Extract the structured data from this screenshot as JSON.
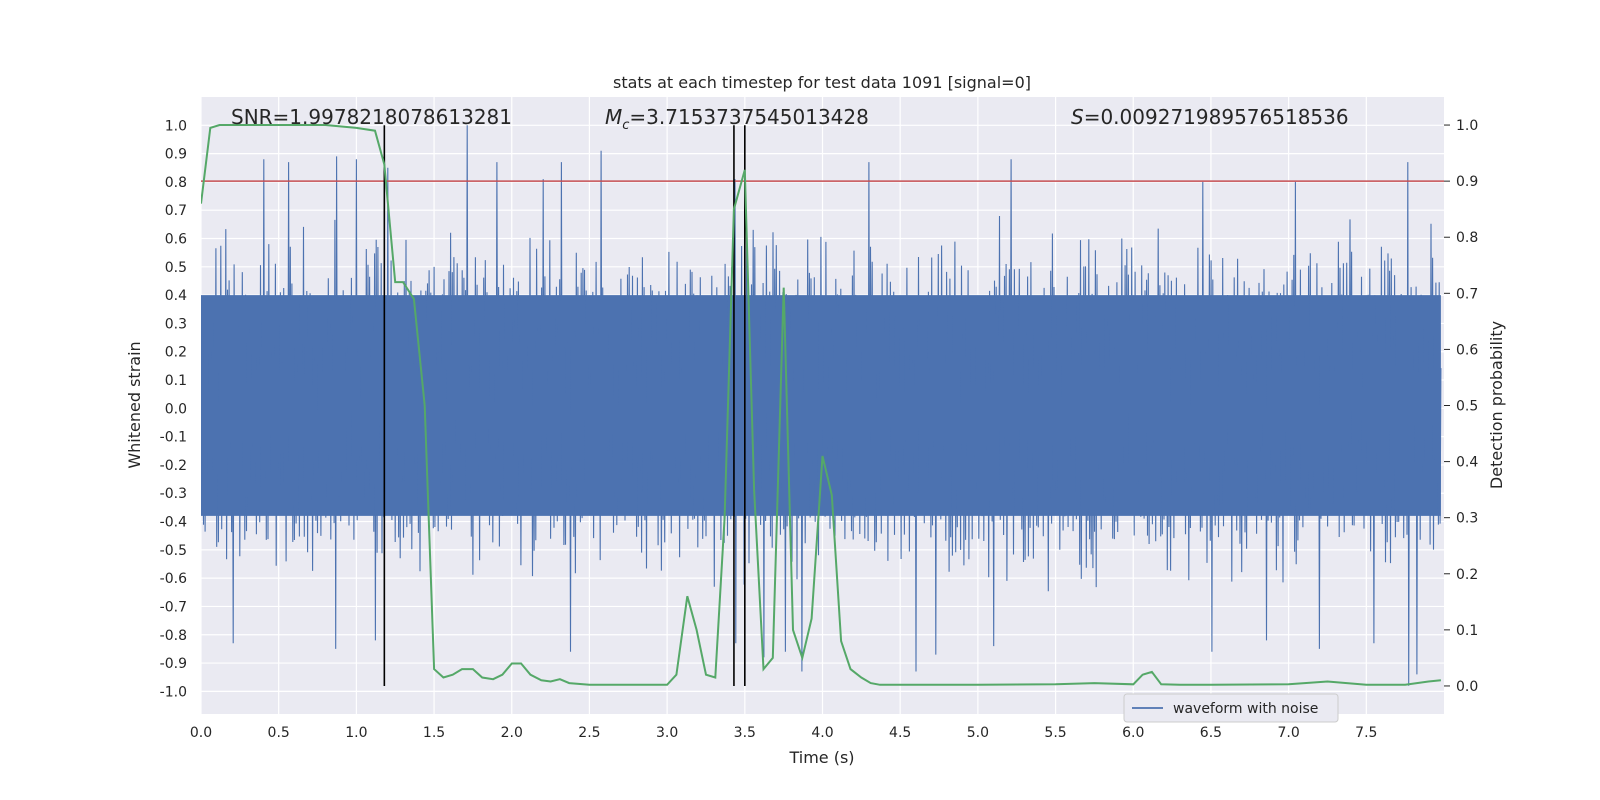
{
  "chart_data": {
    "type": "line",
    "title": "stats at each timestep for test data 1091 [signal=0]",
    "xlabel": "Time (s)",
    "ylabel_left": "Whitened strain",
    "ylabel_right": "Detection probability",
    "xlim": [
      0.0,
      8.0
    ],
    "ylim_left": [
      -1.08,
      1.1
    ],
    "ylim_right": [
      -0.05,
      1.05
    ],
    "x_ticks": [
      "0.0",
      "0.5",
      "1.0",
      "1.5",
      "2.0",
      "2.5",
      "3.0",
      "3.5",
      "4.0",
      "4.5",
      "5.0",
      "5.5",
      "6.0",
      "6.5",
      "7.0",
      "7.5"
    ],
    "y_ticks_left": [
      "-1.0",
      "-0.9",
      "-0.8",
      "-0.7",
      "-0.6",
      "-0.5",
      "-0.4",
      "-0.3",
      "-0.2",
      "-0.1",
      "0.0",
      "0.1",
      "0.2",
      "0.3",
      "0.4",
      "0.5",
      "0.6",
      "0.7",
      "0.8",
      "0.9",
      "1.0"
    ],
    "y_ticks_right": [
      "0.0",
      "0.1",
      "0.2",
      "0.3",
      "0.4",
      "0.5",
      "0.6",
      "0.7",
      "0.8",
      "0.9",
      "1.0"
    ],
    "grid": true,
    "legend": {
      "placement": "lower-right",
      "entries": [
        "waveform with noise"
      ]
    },
    "annotations": {
      "snr": "SNR=1.9978218078613281",
      "mc_symbol": "M",
      "mc_sub": "c",
      "mc_value": "=3.7153737545013428",
      "s_symbol": "S",
      "s_value": "=0.009271989576518536"
    },
    "threshold": {
      "value": 0.9,
      "axis": "right",
      "color": "#c44e52"
    },
    "vlines": [
      1.18,
      3.43,
      3.5
    ],
    "waveform": {
      "name": "waveform with noise",
      "color": "#4c72b0",
      "duration": 7.98,
      "dense_band": [
        -0.38,
        0.4
      ],
      "peaks_high": [
        [
          0.41,
          0.88
        ],
        [
          0.57,
          0.87
        ],
        [
          0.87,
          0.89
        ],
        [
          1.0,
          0.88
        ],
        [
          1.2,
          0.85
        ],
        [
          1.72,
          1.0
        ],
        [
          1.91,
          0.87
        ],
        [
          2.2,
          0.81
        ],
        [
          2.32,
          0.87
        ],
        [
          2.58,
          0.91
        ],
        [
          3.44,
          0.81
        ],
        [
          4.3,
          0.87
        ],
        [
          5.22,
          0.88
        ],
        [
          6.45,
          0.8
        ],
        [
          7.05,
          0.8
        ],
        [
          7.77,
          0.87
        ]
      ],
      "peaks_low": [
        [
          0.2,
          -0.83
        ],
        [
          0.86,
          -0.85
        ],
        [
          1.12,
          -0.82
        ],
        [
          2.38,
          -0.86
        ],
        [
          3.44,
          -0.83
        ],
        [
          3.62,
          -0.88
        ],
        [
          3.76,
          -0.86
        ],
        [
          3.87,
          -0.93
        ],
        [
          4.6,
          -0.93
        ],
        [
          4.73,
          -0.87
        ],
        [
          5.1,
          -0.84
        ],
        [
          6.5,
          -0.86
        ],
        [
          6.85,
          -0.82
        ],
        [
          7.2,
          -0.85
        ],
        [
          7.55,
          -0.83
        ],
        [
          7.77,
          -0.98
        ],
        [
          7.82,
          -0.94
        ]
      ]
    },
    "probability": {
      "color": "#55a868",
      "axis": "right",
      "x": [
        0.0,
        0.06,
        0.12,
        0.3,
        0.5,
        0.8,
        1.0,
        1.12,
        1.18,
        1.25,
        1.3,
        1.37,
        1.44,
        1.5,
        1.56,
        1.62,
        1.68,
        1.75,
        1.81,
        1.88,
        1.94,
        2.0,
        2.06,
        2.12,
        2.19,
        2.25,
        2.31,
        2.37,
        2.5,
        2.7,
        3.0,
        3.06,
        3.13,
        3.19,
        3.25,
        3.31,
        3.37,
        3.43,
        3.5,
        3.56,
        3.62,
        3.68,
        3.75,
        3.81,
        3.87,
        3.93,
        4.0,
        4.06,
        4.12,
        4.18,
        4.25,
        4.31,
        4.37,
        4.5,
        5.0,
        5.5,
        5.75,
        6.0,
        6.06,
        6.12,
        6.18,
        6.3,
        6.5,
        7.0,
        7.25,
        7.5,
        7.75,
        7.9,
        7.98
      ],
      "y": [
        0.86,
        0.995,
        1.0,
        1.0,
        1.0,
        1.0,
        0.995,
        0.99,
        0.93,
        0.72,
        0.72,
        0.69,
        0.5,
        0.03,
        0.015,
        0.02,
        0.03,
        0.03,
        0.015,
        0.012,
        0.02,
        0.04,
        0.04,
        0.02,
        0.01,
        0.008,
        0.012,
        0.005,
        0.002,
        0.002,
        0.002,
        0.02,
        0.16,
        0.1,
        0.02,
        0.015,
        0.3,
        0.85,
        0.92,
        0.35,
        0.03,
        0.05,
        0.71,
        0.1,
        0.05,
        0.12,
        0.41,
        0.34,
        0.08,
        0.03,
        0.015,
        0.005,
        0.002,
        0.002,
        0.002,
        0.003,
        0.005,
        0.003,
        0.02,
        0.025,
        0.003,
        0.002,
        0.002,
        0.003,
        0.008,
        0.002,
        0.002,
        0.008,
        0.01
      ]
    }
  }
}
